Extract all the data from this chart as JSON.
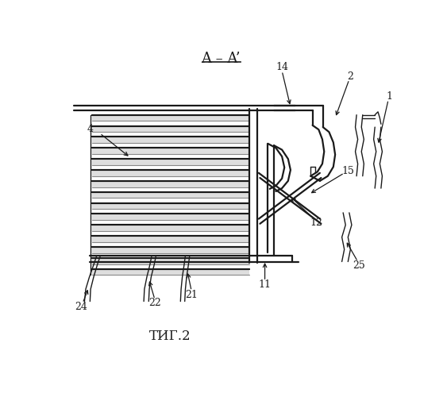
{
  "bg_color": "#ffffff",
  "line_color": "#1a1a1a",
  "title": "A – A’",
  "fig_label": "ΤИГ.2",
  "num_plates": 15,
  "plate_lw": 1.5,
  "main_lw": 1.6,
  "thin_lw": 1.0,
  "leader_lw": 0.9
}
